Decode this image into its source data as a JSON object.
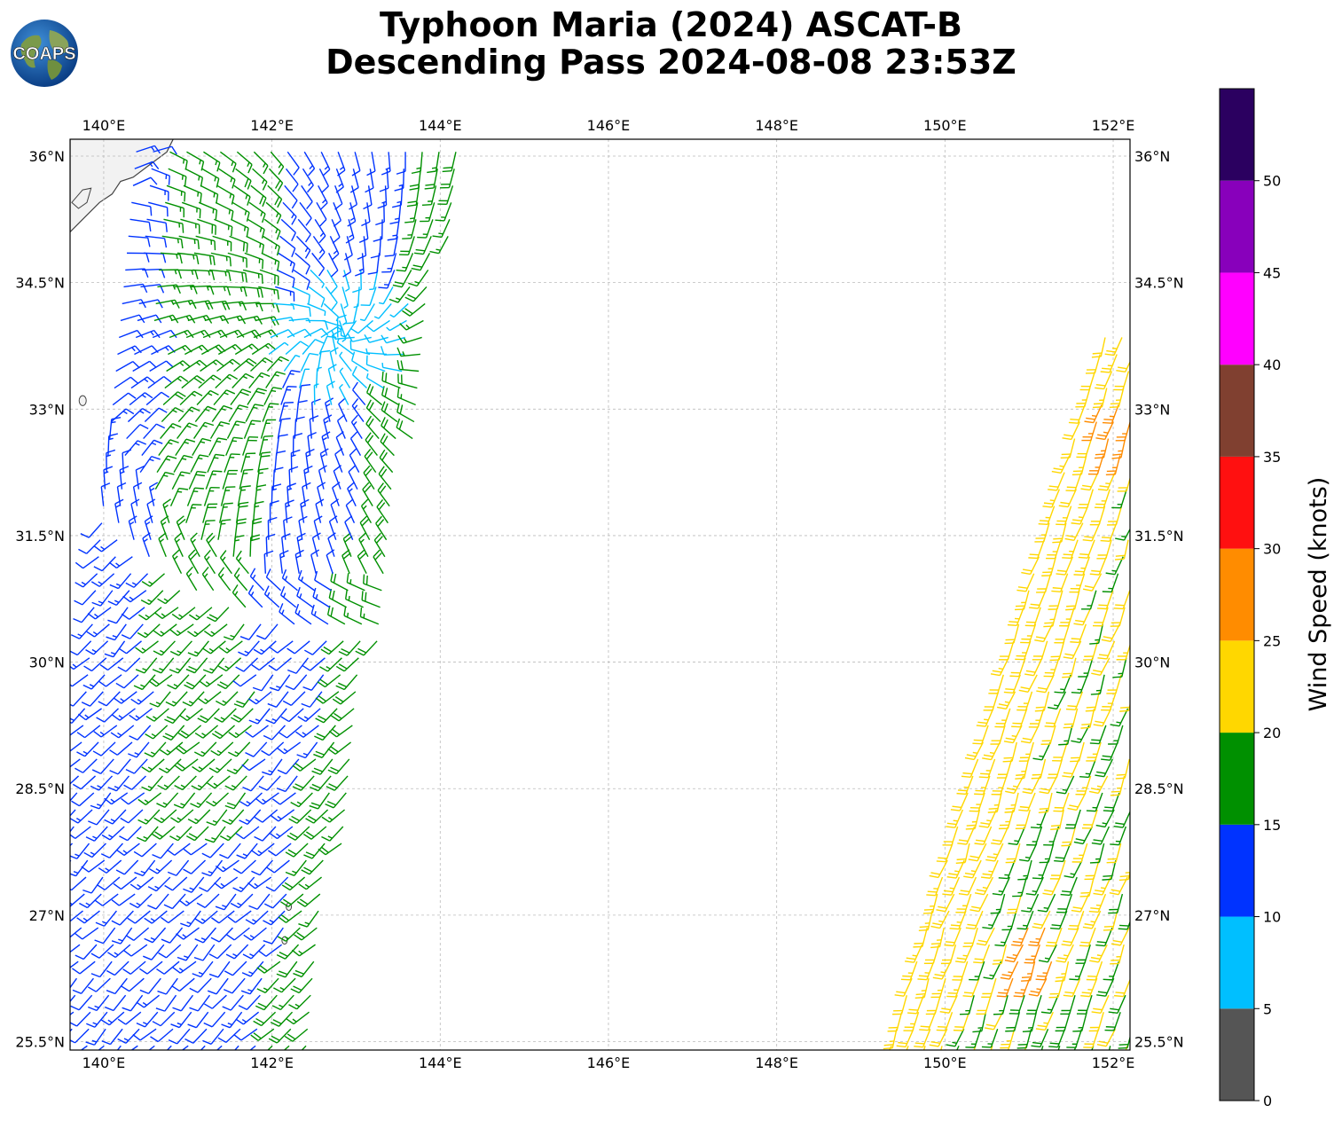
{
  "title": {
    "line1": "Typhoon Maria (2024) ASCAT-B",
    "line2": "Descending Pass 2024-08-08 23:53Z"
  },
  "logo": {
    "text": "COAPS",
    "icon": "globe-icon"
  },
  "map": {
    "lon_range": [
      139.6,
      152.2
    ],
    "lat_range": [
      25.4,
      36.2
    ],
    "lon_ticks": [
      "140°E",
      "142°E",
      "144°E",
      "146°E",
      "148°E",
      "150°E",
      "152°E"
    ],
    "lat_ticks": [
      "36°N",
      "34.5°N",
      "33°N",
      "31.5°N",
      "30°N",
      "28.5°N",
      "27°N",
      "25.5°N"
    ],
    "lon_tick_values": [
      140,
      142,
      144,
      146,
      148,
      150,
      152
    ],
    "lat_tick_values": [
      36,
      34.5,
      33,
      31.5,
      30,
      28.5,
      27,
      25.5
    ]
  },
  "colorbar": {
    "label": "Wind Speed (knots)",
    "ticks": [
      "0",
      "5",
      "10",
      "15",
      "20",
      "25",
      "30",
      "35",
      "40",
      "45",
      "50"
    ],
    "bins": [
      {
        "min": 0,
        "max": 5,
        "color": "#555555"
      },
      {
        "min": 5,
        "max": 10,
        "color": "#00bfff"
      },
      {
        "min": 10,
        "max": 15,
        "color": "#0033ff"
      },
      {
        "min": 15,
        "max": 20,
        "color": "#009000"
      },
      {
        "min": 20,
        "max": 25,
        "color": "#ffd700"
      },
      {
        "min": 25,
        "max": 30,
        "color": "#ff8c00"
      },
      {
        "min": 30,
        "max": 35,
        "color": "#ff1010"
      },
      {
        "min": 35,
        "max": 40,
        "color": "#804030"
      },
      {
        "min": 40,
        "max": 45,
        "color": "#ff00ff"
      },
      {
        "min": 45,
        "max": 50,
        "color": "#8800bb"
      },
      {
        "min": 50,
        "max": 55,
        "color": "#2b0060"
      }
    ]
  },
  "colors": {
    "calm": "#00bfff",
    "light": "#0033ff",
    "moderate": "#009000",
    "fresh": "#ffd700",
    "strong": "#ff8c00",
    "coast": "#444444",
    "land": "#f2f2f2",
    "grid": "#bbbbbb"
  }
}
